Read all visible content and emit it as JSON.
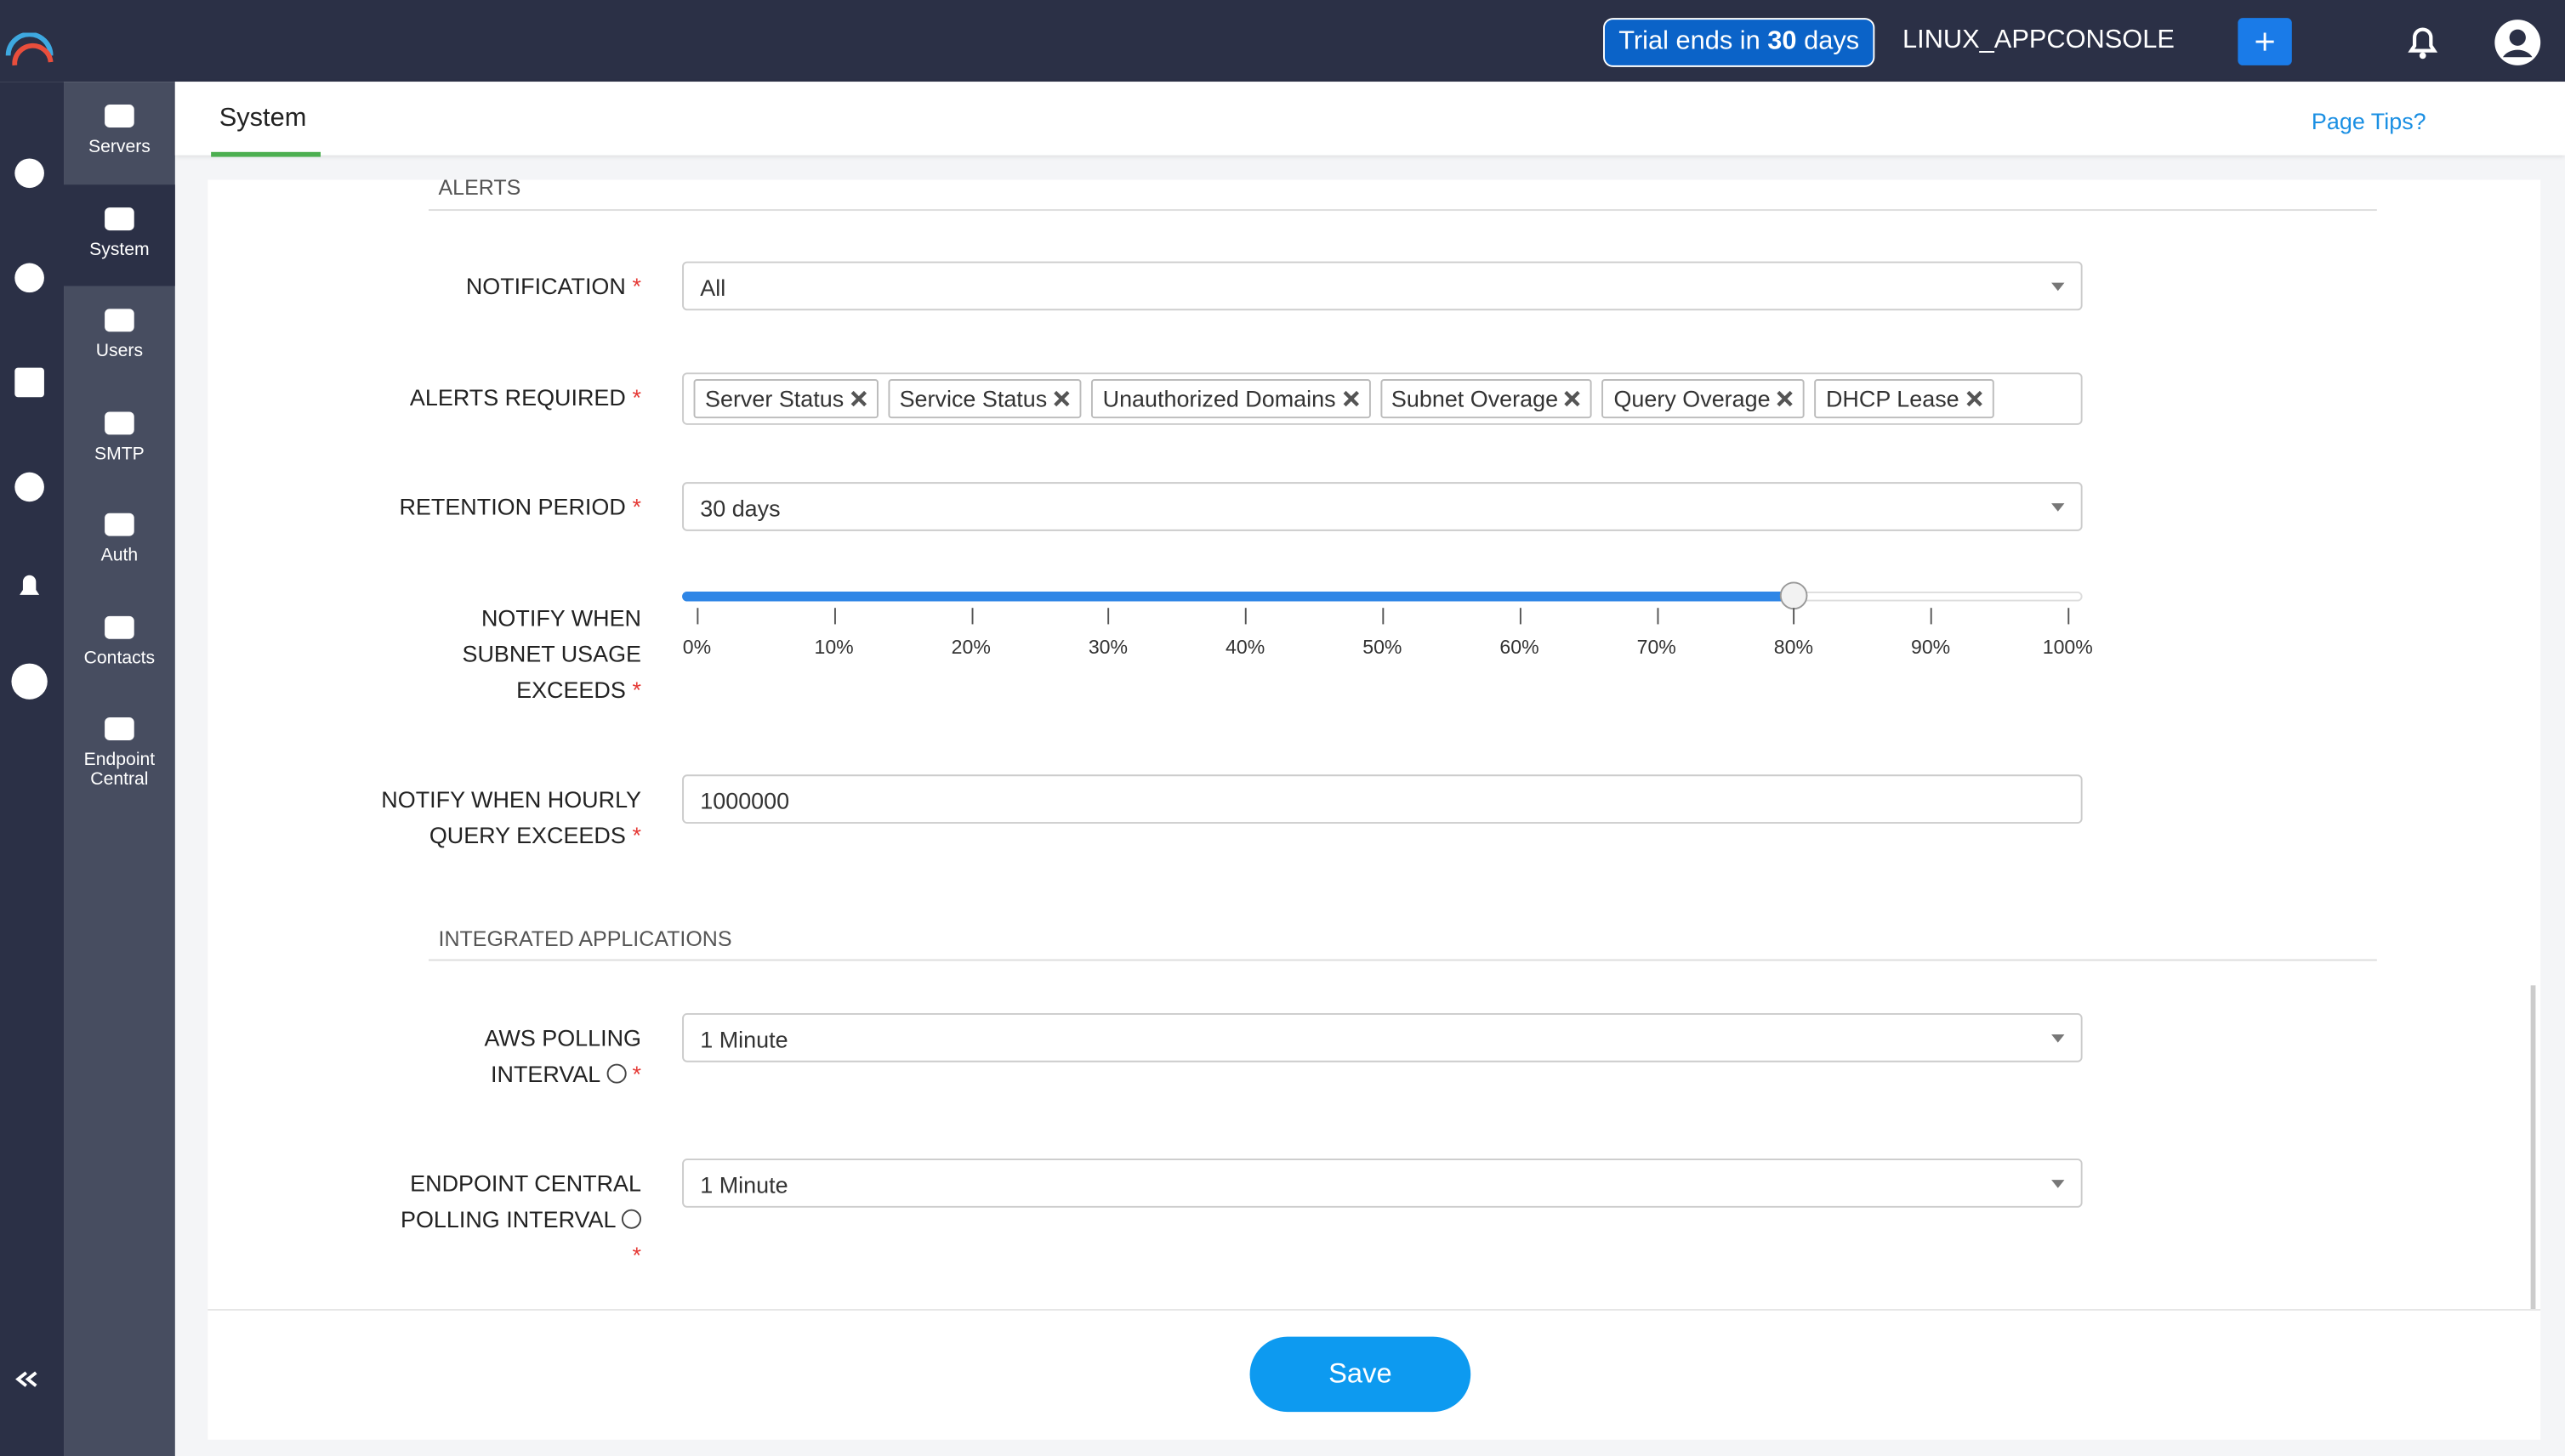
{
  "header": {
    "trial_prefix": "Trial ends in",
    "trial_days": "30",
    "trial_suffix": "days",
    "console": "LINUX_APPCONSOLE"
  },
  "sidebar": {
    "items": [
      "Servers",
      "System",
      "Users",
      "SMTP",
      "Auth",
      "Contacts",
      "Endpoint Central"
    ]
  },
  "tab": "System",
  "page_tips": "Page Tips?",
  "required_mark": "*",
  "alerts": {
    "heading": "ALERTS",
    "notification": {
      "label": "NOTIFICATION",
      "value": "All"
    },
    "alerts_required": {
      "label": "ALERTS REQUIRED",
      "tags": [
        "Server Status",
        "Service Status",
        "Unauthorized Domains",
        "Subnet Overage",
        "Query Overage",
        "DHCP Lease"
      ]
    },
    "retention": {
      "label": "RETENTION PERIOD",
      "value": "30 days"
    },
    "subnet_usage": {
      "label": "NOTIFY WHEN SUBNET USAGE EXCEEDS",
      "value": 80,
      "ticks": [
        {
          "value": 0,
          "label": "0%"
        },
        {
          "value": 10,
          "label": "10%"
        },
        {
          "value": 20,
          "label": "20%"
        },
        {
          "value": 30,
          "label": "30%"
        },
        {
          "value": 40,
          "label": "40%"
        },
        {
          "value": 50,
          "label": "50%"
        },
        {
          "value": 60,
          "label": "60%"
        },
        {
          "value": 70,
          "label": "70%"
        },
        {
          "value": 80,
          "label": "80%"
        },
        {
          "value": 90,
          "label": "90%"
        },
        {
          "value": 100,
          "label": "100%"
        }
      ]
    },
    "hourly_query": {
      "label": "NOTIFY WHEN HOURLY QUERY EXCEEDS",
      "value": "1000000"
    }
  },
  "integrated": {
    "heading": "INTEGRATED APPLICATIONS",
    "aws": {
      "label": "AWS POLLING INTERVAL",
      "value": "1 Minute"
    },
    "endpoint": {
      "label": "ENDPOINT CENTRAL POLLING INTERVAL",
      "value": "1 Minute"
    }
  },
  "save": "Save"
}
